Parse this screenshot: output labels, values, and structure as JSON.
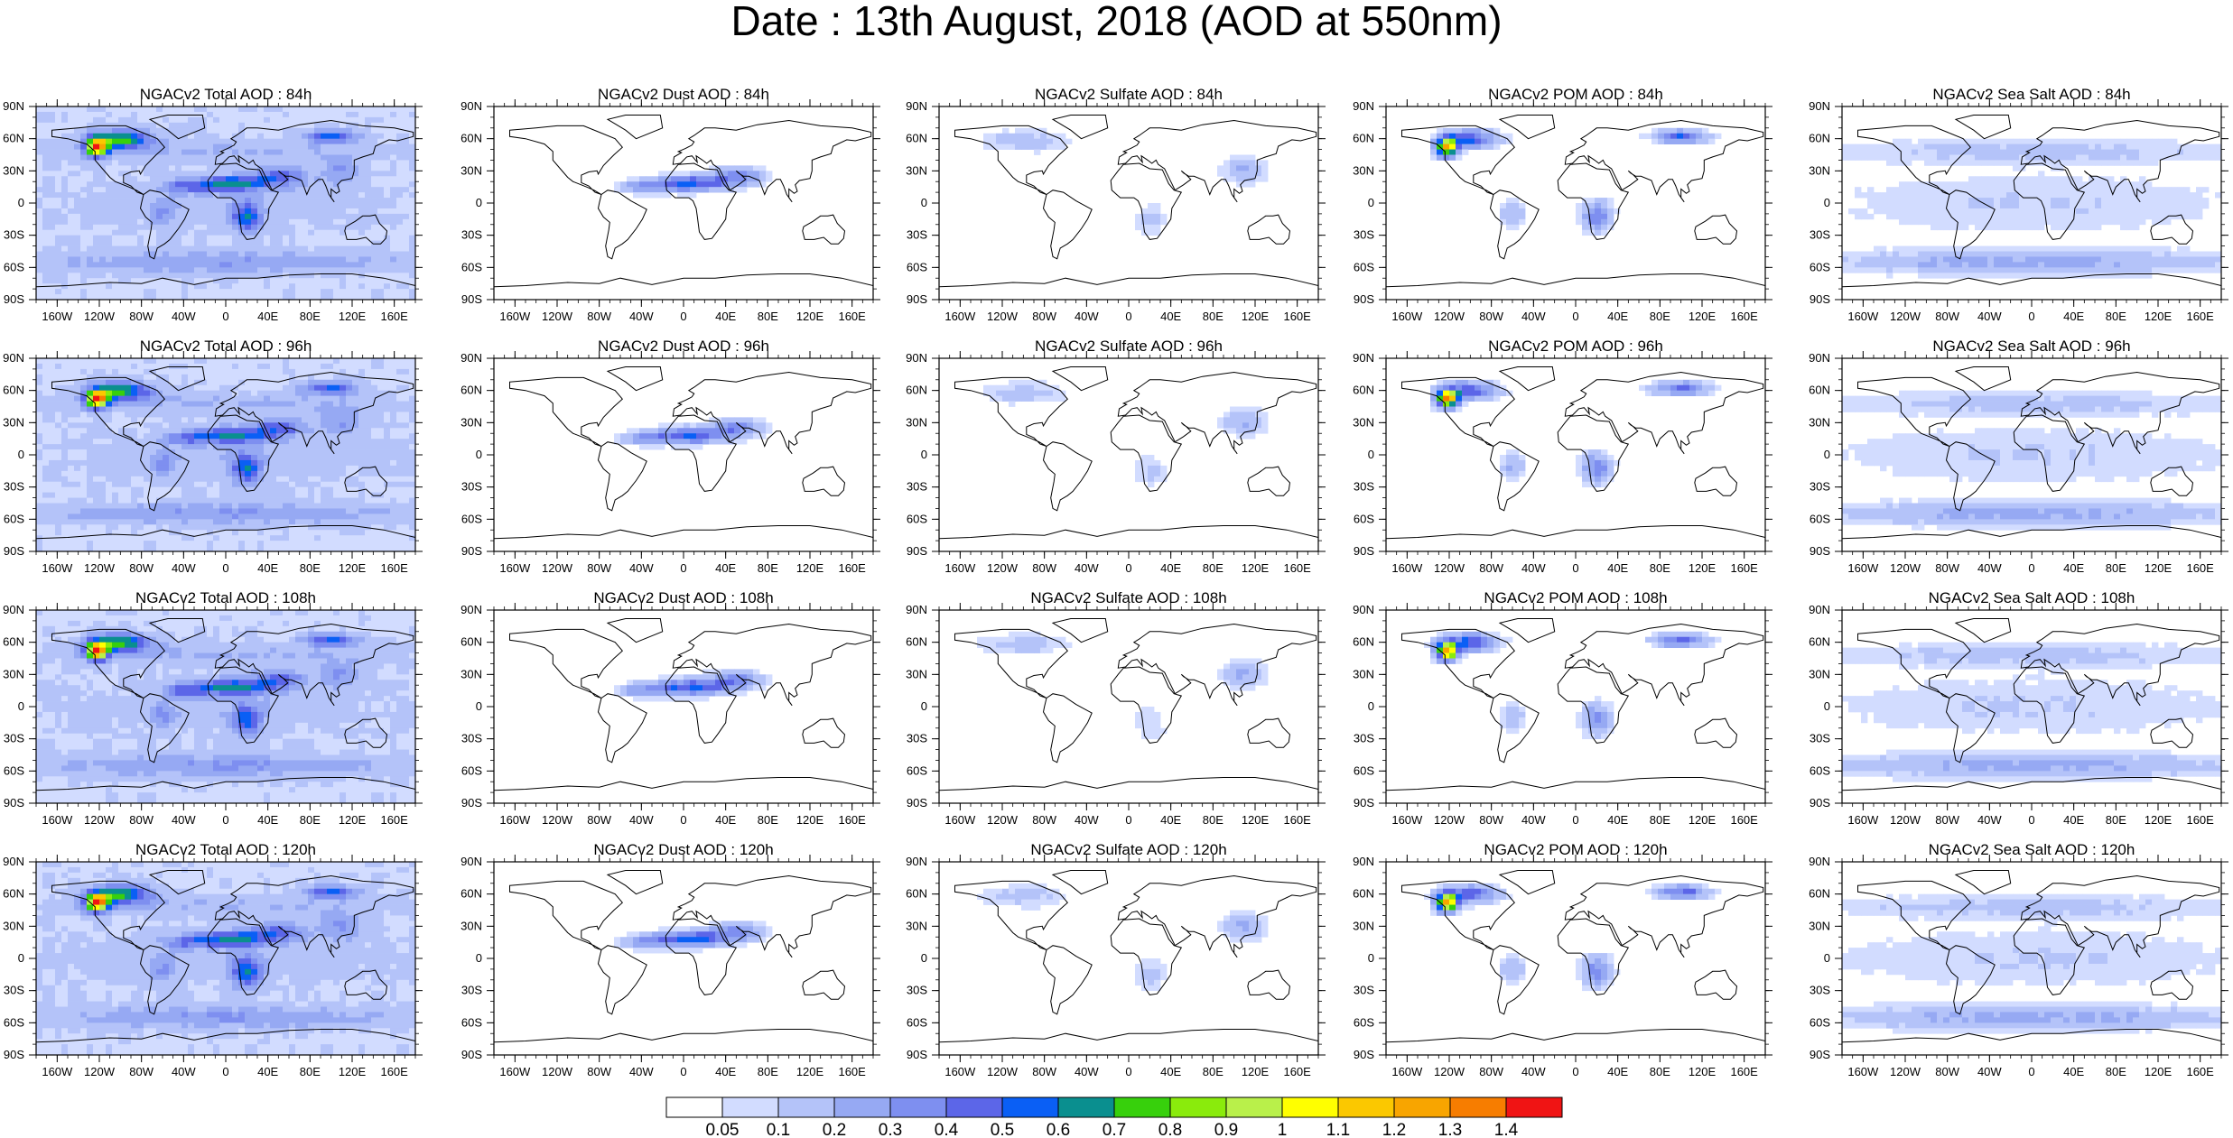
{
  "title": "Date : 13th August, 2018 (AOD at 550nm)",
  "panels": [
    [
      "NGACv2 Total AOD : 84h",
      "NGACv2 Dust AOD : 84h",
      "NGACv2 Sulfate AOD : 84h",
      "NGACv2 POM AOD : 84h",
      "NGACv2 Sea Salt AOD : 84h"
    ],
    [
      "NGACv2 Total AOD : 96h",
      "NGACv2 Dust AOD : 96h",
      "NGACv2 Sulfate AOD : 96h",
      "NGACv2 POM AOD : 96h",
      "NGACv2 Sea Salt AOD : 96h"
    ],
    [
      "NGACv2 Total AOD : 108h",
      "NGACv2 Dust AOD : 108h",
      "NGACv2 Sulfate AOD : 108h",
      "NGACv2 POM AOD : 108h",
      "NGACv2 Sea Salt AOD : 108h"
    ],
    [
      "NGACv2 Total AOD : 120h",
      "NGACv2 Dust AOD : 120h",
      "NGACv2 Sulfate AOD : 120h",
      "NGACv2 POM AOD : 120h",
      "NGACv2 Sea Salt  AOD : 120h"
    ]
  ],
  "lon_ticks": [
    "160W",
    "120W",
    "80W",
    "40W",
    "0",
    "40E",
    "80E",
    "120E",
    "160E"
  ],
  "lat_ticks": [
    "90N",
    "60N",
    "30N",
    "0",
    "30S",
    "60S",
    "90S"
  ],
  "colorbar": {
    "labels": [
      "0.05",
      "0.1",
      "0.2",
      "0.3",
      "0.4",
      "0.5",
      "0.6",
      "0.7",
      "0.8",
      "0.9",
      "1",
      "1.1",
      "1.2",
      "1.3",
      "1.4"
    ],
    "colors": [
      "#ffffff",
      "#d2dcff",
      "#b4c3f9",
      "#96a9f3",
      "#7e8ff0",
      "#5c66e8",
      "#0a5ff5",
      "#0a8f8f",
      "#37d00c",
      "#8aeb0c",
      "#b9f04a",
      "#ffff00",
      "#fbc800",
      "#f8a500",
      "#f77d00",
      "#f01414"
    ]
  }
}
